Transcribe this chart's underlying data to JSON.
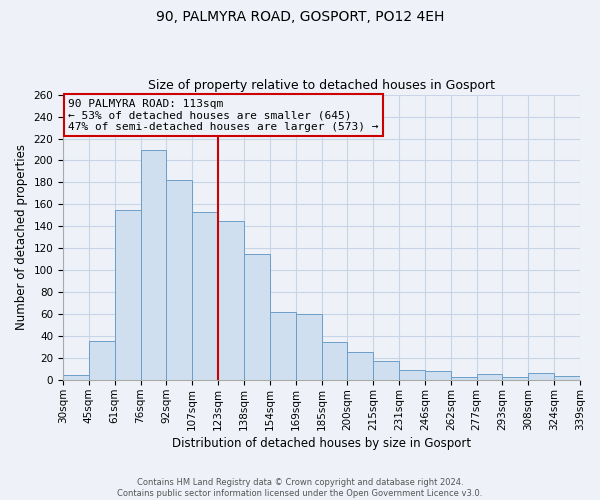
{
  "title": "90, PALMYRA ROAD, GOSPORT, PO12 4EH",
  "subtitle": "Size of property relative to detached houses in Gosport",
  "xlabel": "Distribution of detached houses by size in Gosport",
  "ylabel": "Number of detached properties",
  "categories": [
    "30sqm",
    "45sqm",
    "61sqm",
    "76sqm",
    "92sqm",
    "107sqm",
    "123sqm",
    "138sqm",
    "154sqm",
    "169sqm",
    "185sqm",
    "200sqm",
    "215sqm",
    "231sqm",
    "246sqm",
    "262sqm",
    "277sqm",
    "293sqm",
    "308sqm",
    "324sqm",
    "339sqm"
  ],
  "values": [
    5,
    36,
    155,
    210,
    182,
    153,
    145,
    115,
    62,
    60,
    35,
    26,
    18,
    9,
    8,
    3,
    6,
    3,
    7,
    4
  ],
  "bar_color": "#d0dff0",
  "bar_edge_color": "#6b9ec8",
  "annotation_title": "90 PALMYRA ROAD: 113sqm",
  "annotation_line1": "← 53% of detached houses are smaller (645)",
  "annotation_line2": "47% of semi-detached houses are larger (573) →",
  "annotation_box_edge": "#cc0000",
  "reference_line_color": "#cc0000",
  "ylim": [
    0,
    260
  ],
  "yticks": [
    0,
    20,
    40,
    60,
    80,
    100,
    120,
    140,
    160,
    180,
    200,
    220,
    240,
    260
  ],
  "footer_line1": "Contains HM Land Registry data © Crown copyright and database right 2024.",
  "footer_line2": "Contains public sector information licensed under the Open Government Licence v3.0.",
  "background_color": "#eef2f8",
  "grid_color": "#c8d4e8",
  "title_fontsize": 10,
  "subtitle_fontsize": 9,
  "xlabel_fontsize": 8.5,
  "ylabel_fontsize": 8.5,
  "tick_fontsize": 7.5,
  "annotation_fontsize": 8,
  "footer_fontsize": 6
}
